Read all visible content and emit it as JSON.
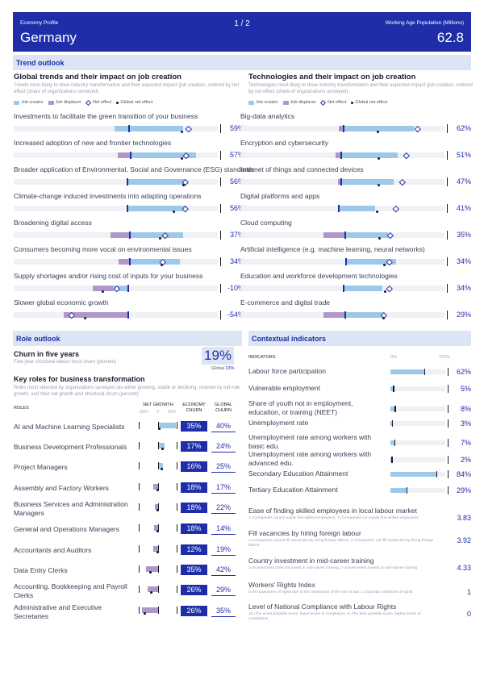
{
  "header": {
    "left_label": "Economy Profile",
    "page": "1 / 2",
    "right_label": "Working Age Population (Millions)",
    "country": "Germany",
    "population": "62.8"
  },
  "colors": {
    "brand": "#1f2ea8",
    "band": "#dbe5f4",
    "creator": "#9dc8e8",
    "displacer": "#b197c9"
  },
  "trend_outlook": {
    "band_title": "Trend outlook",
    "left": {
      "title": "Global trends and their impact on job creation",
      "desc": "Trends most likely to drive industry transformation and their expected impact (job creation, ordered by net effect (share of organizations surveyed)",
      "legend": [
        "Job creator",
        "Job displacer",
        "Net effect",
        "Global net effect"
      ],
      "items": [
        {
          "label": "Investments to facilitate the green transition of your business",
          "value": "59%"
        },
        {
          "label": "Increased adoption of new and frontier technologies",
          "value": "57%"
        },
        {
          "label": "Broader application of Environmental, Social and Governance (ESG) standards",
          "value": "56%"
        },
        {
          "label": "Climate-change induced investments into adapting operations",
          "value": "56%"
        },
        {
          "label": "Broadening digital access",
          "value": "37%"
        },
        {
          "label": "Consumers becoming more vocal on environmental issues",
          "value": "34%"
        },
        {
          "label": "Supply shortages and/or rising cost of inputs for your business",
          "value": "-10%"
        },
        {
          "label": "Slower global economic growth",
          "value": "-54%"
        }
      ]
    },
    "right": {
      "title": "Technologies and their impact on job creation",
      "desc": "Technologies most likely to drive industry transformation and their expected impact (job creation, ordered by net effect (share of organizations surveyed)",
      "legend": [
        "Job creator",
        "Job displacer",
        "Net effect",
        "Global net effect"
      ],
      "items": [
        {
          "label": "Big-data analytics",
          "value": "62%"
        },
        {
          "label": "Encryption and cybersecurity",
          "value": "51%"
        },
        {
          "label": "Internet of things and connected devices",
          "value": "47%"
        },
        {
          "label": "Digital platforms and apps",
          "value": "41%"
        },
        {
          "label": "Cloud computing",
          "value": "35%"
        },
        {
          "label": "Artificial intelligence (e.g. machine learning, neural networks)",
          "value": "34%"
        },
        {
          "label": "Education and workforce development technologies",
          "value": "34%"
        },
        {
          "label": "E-commerce and digital trade",
          "value": "29%"
        }
      ]
    }
  },
  "role_outlook": {
    "band_title": "Role outlook",
    "churn_title": "Churn in five years",
    "churn_sub": "Five-year structural labour force churn (percent)",
    "churn_value": "19%",
    "churn_global_label": "Global",
    "churn_global_value": "23%",
    "kr_title": "Key roles for business transformation",
    "kr_desc": "Roles most selected by organizations surveyed (as either growing, stable or declining, ordered by net role growth, and their net growth and structural churn (percent)",
    "roles_header": "ROLES",
    "col_net_growth": "NET GROWTH",
    "col_economy_churn": "ECONOMY CHURN",
    "col_global_churn": "GLOBAL CHURN",
    "tick_neg": "-50%",
    "tick_zero": "0",
    "tick_pos": "50%",
    "roles": [
      {
        "name": "AI and Machine Learning Specialists",
        "churn": "35%",
        "global": "40%"
      },
      {
        "name": "Business Development Professionals",
        "churn": "17%",
        "global": "24%"
      },
      {
        "name": "Project Managers",
        "churn": "16%",
        "global": "25%"
      },
      {
        "name": "Assembly and Factory Workers",
        "churn": "18%",
        "global": "17%"
      },
      {
        "name": "Business Services and Administration Managers",
        "churn": "18%",
        "global": "22%"
      },
      {
        "name": "General and Operations Managers",
        "churn": "18%",
        "global": "14%"
      },
      {
        "name": "Accountants and Auditors",
        "churn": "12%",
        "global": "19%"
      },
      {
        "name": "Data Entry Clerks",
        "churn": "35%",
        "global": "42%"
      },
      {
        "name": "Accounting, Bookkeeping and Payroll Clerks",
        "churn": "26%",
        "global": "29%"
      },
      {
        "name": "Administrative and Executive Secretaries",
        "churn": "26%",
        "global": "35%"
      }
    ]
  },
  "contextual": {
    "band_title": "Contextual indicators",
    "header": "INDICATORS",
    "tick_0": "0%",
    "tick_100": "100%",
    "percent_indicators": [
      {
        "label": "Labour force participation",
        "value": "62%"
      },
      {
        "label": "Vulnerable employment",
        "value": "5%"
      },
      {
        "label": "Share of youth not in employment, education, or training (NEET)",
        "value": "8%"
      },
      {
        "label": "Unemployment rate",
        "value": "3%"
      },
      {
        "label": "Unemployment rate among workers with basic edu.",
        "value": "7%"
      },
      {
        "label": "Unemployment rate among workers with advanced edu.",
        "value": "2%"
      },
      {
        "label": "Secondary Education Attainment",
        "value": "84%"
      },
      {
        "label": "Tertiary Education Attainment",
        "value": "29%"
      }
    ],
    "score_indicators": [
      {
        "label": "Ease of finding skilled employees in local labour market",
        "sub": "1=Companies cannot easily find skilled employees, 7=Companies can easily find skilled employees",
        "value": "3.83"
      },
      {
        "label": "Fill vacancies by hiring foreign labour",
        "sub": "1=Companies cannot fill vacancies by hiring foreign labour, 7=Companies can fill vacancies by hiring foreign labour",
        "value": "3.92"
      },
      {
        "label": "Country investment in mid-career training",
        "sub": "1=Government does not invest in mid-career training, 7=Government invests in mid-career training",
        "value": "4.33"
      },
      {
        "label": "Workers' Rights Index",
        "sub": "5=No guarantee of rights due to the breakdown of the rule of law, 1=Sporadic violations of rights",
        "value": "1"
      },
      {
        "label": "Level of National Compliance with Labour Rights",
        "sub": "10=The worst possible score, lower levels of compliance. 0=The best possible score, higher levels of compliance",
        "value": "0"
      }
    ]
  }
}
